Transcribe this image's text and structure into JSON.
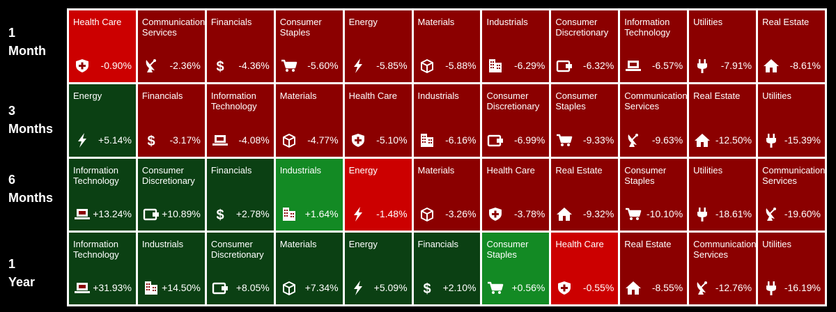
{
  "colors": {
    "negative_dark": "#8b0000",
    "negative_bright": "#cc0000",
    "positive_dark": "#0b4013",
    "positive_bright": "#138a24",
    "background": "#000000",
    "border": "#ffffff"
  },
  "chart_data": {
    "type": "heatmap",
    "rows": [
      {
        "period": [
          "1",
          "Month"
        ],
        "cells": [
          {
            "sector": "Health Care",
            "value": -0.9,
            "label": "-0.90%",
            "icon": "shield-cross-icon",
            "highlight": true
          },
          {
            "sector": "Communication Services",
            "value": -2.36,
            "label": "-2.36%",
            "icon": "satellite-dish-icon"
          },
          {
            "sector": "Financials",
            "value": -4.36,
            "label": "-4.36%",
            "icon": "dollar-icon"
          },
          {
            "sector": "Consumer Staples",
            "value": -5.6,
            "label": "-5.60%",
            "icon": "shopping-cart-icon"
          },
          {
            "sector": "Energy",
            "value": -5.85,
            "label": "-5.85%",
            "icon": "lightning-icon"
          },
          {
            "sector": "Materials",
            "value": -5.88,
            "label": "-5.88%",
            "icon": "box-icon"
          },
          {
            "sector": "Industrials",
            "value": -6.29,
            "label": "-6.29%",
            "icon": "building-icon"
          },
          {
            "sector": "Consumer Discretionary",
            "value": -6.32,
            "label": "-6.32%",
            "icon": "wallet-icon"
          },
          {
            "sector": "Information Technology",
            "value": -6.57,
            "label": "-6.57%",
            "icon": "laptop-icon"
          },
          {
            "sector": "Utilities",
            "value": -7.91,
            "label": "-7.91%",
            "icon": "plug-icon"
          },
          {
            "sector": "Real Estate",
            "value": -8.61,
            "label": "-8.61%",
            "icon": "house-icon"
          }
        ]
      },
      {
        "period": [
          "3",
          "Months"
        ],
        "cells": [
          {
            "sector": "Energy",
            "value": 5.14,
            "label": "+5.14%",
            "icon": "lightning-icon"
          },
          {
            "sector": "Financials",
            "value": -3.17,
            "label": "-3.17%",
            "icon": "dollar-icon"
          },
          {
            "sector": "Information Technology",
            "value": -4.08,
            "label": "-4.08%",
            "icon": "laptop-icon"
          },
          {
            "sector": "Materials",
            "value": -4.77,
            "label": "-4.77%",
            "icon": "box-icon"
          },
          {
            "sector": "Health Care",
            "value": -5.1,
            "label": "-5.10%",
            "icon": "shield-cross-icon"
          },
          {
            "sector": "Industrials",
            "value": -6.16,
            "label": "-6.16%",
            "icon": "building-icon"
          },
          {
            "sector": "Consumer Discretionary",
            "value": -6.99,
            "label": "-6.99%",
            "icon": "wallet-icon"
          },
          {
            "sector": "Consumer Staples",
            "value": -9.33,
            "label": "-9.33%",
            "icon": "shopping-cart-icon"
          },
          {
            "sector": "Communication Services",
            "value": -9.63,
            "label": "-9.63%",
            "icon": "satellite-dish-icon"
          },
          {
            "sector": "Real Estate",
            "value": -12.5,
            "label": "-12.50%",
            "icon": "house-icon"
          },
          {
            "sector": "Utilities",
            "value": -15.39,
            "label": "-15.39%",
            "icon": "plug-icon"
          }
        ]
      },
      {
        "period": [
          "6",
          "Months"
        ],
        "cells": [
          {
            "sector": "Information Technology",
            "value": 13.24,
            "label": "+13.24%",
            "icon": "laptop-icon"
          },
          {
            "sector": "Consumer Discretionary",
            "value": 10.89,
            "label": "+10.89%",
            "icon": "wallet-icon"
          },
          {
            "sector": "Financials",
            "value": 2.78,
            "label": "+2.78%",
            "icon": "dollar-icon"
          },
          {
            "sector": "Industrials",
            "value": 1.64,
            "label": "+1.64%",
            "icon": "building-icon",
            "highlight": true
          },
          {
            "sector": "Energy",
            "value": -1.48,
            "label": "-1.48%",
            "icon": "lightning-icon",
            "highlight": true
          },
          {
            "sector": "Materials",
            "value": -3.26,
            "label": "-3.26%",
            "icon": "box-icon"
          },
          {
            "sector": "Health Care",
            "value": -3.78,
            "label": "-3.78%",
            "icon": "shield-cross-icon"
          },
          {
            "sector": "Real Estate",
            "value": -9.32,
            "label": "-9.32%",
            "icon": "house-icon"
          },
          {
            "sector": "Consumer Staples",
            "value": -10.1,
            "label": "-10.10%",
            "icon": "shopping-cart-icon"
          },
          {
            "sector": "Utilities",
            "value": -18.61,
            "label": "-18.61%",
            "icon": "plug-icon"
          },
          {
            "sector": "Communication Services",
            "value": -19.6,
            "label": "-19.60%",
            "icon": "satellite-dish-icon"
          }
        ]
      },
      {
        "period": [
          "1",
          "Year"
        ],
        "cells": [
          {
            "sector": "Information Technology",
            "value": 31.93,
            "label": "+31.93%",
            "icon": "laptop-icon"
          },
          {
            "sector": "Industrials",
            "value": 14.5,
            "label": "+14.50%",
            "icon": "building-icon"
          },
          {
            "sector": "Consumer Discretionary",
            "value": 8.05,
            "label": "+8.05%",
            "icon": "wallet-icon"
          },
          {
            "sector": "Materials",
            "value": 7.34,
            "label": "+7.34%",
            "icon": "box-icon"
          },
          {
            "sector": "Energy",
            "value": 5.09,
            "label": "+5.09%",
            "icon": "lightning-icon"
          },
          {
            "sector": "Financials",
            "value": 2.1,
            "label": "+2.10%",
            "icon": "dollar-icon"
          },
          {
            "sector": "Consumer Staples",
            "value": 0.56,
            "label": "+0.56%",
            "icon": "shopping-cart-icon",
            "highlight": true
          },
          {
            "sector": "Health Care",
            "value": -0.55,
            "label": "-0.55%",
            "icon": "shield-cross-icon",
            "highlight": true
          },
          {
            "sector": "Real Estate",
            "value": -8.55,
            "label": "-8.55%",
            "icon": "house-icon"
          },
          {
            "sector": "Communication Services",
            "value": -12.76,
            "label": "-12.76%",
            "icon": "satellite-dish-icon"
          },
          {
            "sector": "Utilities",
            "value": -16.19,
            "label": "-16.19%",
            "icon": "plug-icon"
          }
        ]
      }
    ]
  }
}
